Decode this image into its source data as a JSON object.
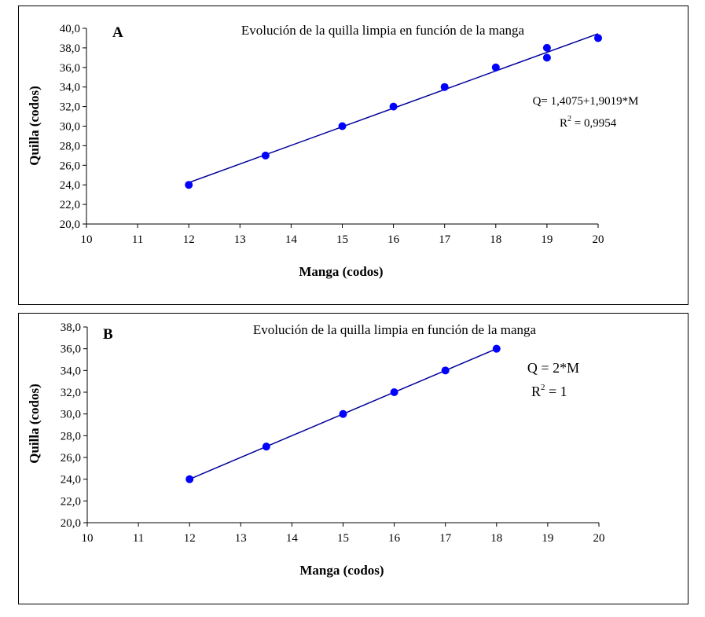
{
  "chart_data": [
    {
      "type": "scatter",
      "panel_label": "A",
      "title": "Evolución de la quilla limpia en función de la manga",
      "xlabel": "Manga (codos)",
      "ylabel": "Quilla (codos)",
      "xlim": [
        10,
        20
      ],
      "ylim": [
        20,
        40
      ],
      "x_ticks": [
        "10",
        "11",
        "12",
        "13",
        "14",
        "15",
        "16",
        "17",
        "18",
        "19",
        "20"
      ],
      "y_ticks": [
        "20,0",
        "22,0",
        "24,0",
        "26,0",
        "28,0",
        "30,0",
        "32,0",
        "34,0",
        "36,0",
        "38,0",
        "40,0"
      ],
      "points": [
        {
          "x": 12,
          "y": 24
        },
        {
          "x": 13.5,
          "y": 27
        },
        {
          "x": 15,
          "y": 30
        },
        {
          "x": 16,
          "y": 32
        },
        {
          "x": 17,
          "y": 34
        },
        {
          "x": 18,
          "y": 36
        },
        {
          "x": 19,
          "y": 38
        },
        {
          "x": 19,
          "y": 37
        },
        {
          "x": 20,
          "y": 39
        }
      ],
      "trendline": {
        "intercept": 1.4075,
        "slope": 1.9019,
        "x_range": [
          12,
          20
        ]
      },
      "equation": "Q= 1,4075+1,9019*M",
      "r2_prefix": "R",
      "r2_sup": "2",
      "r2_value": " = 0,9954",
      "grid": false,
      "marker_color": "#0000ff",
      "line_color": "#000099"
    },
    {
      "type": "scatter",
      "panel_label": "B",
      "title": "Evolución de la quilla limpia en función de la manga",
      "xlabel": "Manga (codos)",
      "ylabel": "Quilla (codos)",
      "xlim": [
        10,
        20
      ],
      "ylim": [
        20,
        38
      ],
      "x_ticks": [
        "10",
        "11",
        "12",
        "13",
        "14",
        "15",
        "16",
        "17",
        "18",
        "19",
        "20"
      ],
      "y_ticks": [
        "20,0",
        "22,0",
        "24,0",
        "26,0",
        "28,0",
        "30,0",
        "32,0",
        "34,0",
        "36,0",
        "38,0"
      ],
      "points": [
        {
          "x": 12,
          "y": 24
        },
        {
          "x": 13.5,
          "y": 27
        },
        {
          "x": 15,
          "y": 30
        },
        {
          "x": 16,
          "y": 32
        },
        {
          "x": 17,
          "y": 34
        },
        {
          "x": 18,
          "y": 36
        }
      ],
      "trendline": {
        "intercept": 0,
        "slope": 2,
        "x_range": [
          12,
          18
        ]
      },
      "equation": "Q = 2*M",
      "r2_prefix": "R",
      "r2_sup": "2",
      "r2_value": " = 1",
      "grid": false,
      "marker_color": "#0000ff",
      "line_color": "#000099"
    }
  ]
}
